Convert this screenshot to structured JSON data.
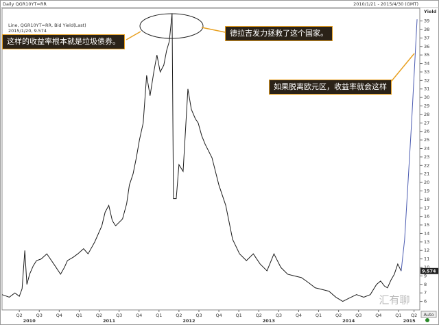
{
  "chart_data": {
    "type": "line",
    "title": "Daily QGR10YT=RR",
    "date_range": "2010/1/21 - 2015/4/30 (GMT)",
    "y_label": "Yield",
    "legend_text": [
      "Line, QGR10YT=RR, Bid Yield(Last)",
      "2015/1/20, 9.574"
    ],
    "last_value": 9.574,
    "series": [
      {
        "name": "Line, QGR10YT=RR, Bid Yield(Last)",
        "color": "#1a1a1a",
        "x": [
          2010.159,
          2010.25,
          2010.32,
          2010.375,
          2010.41,
          2010.444,
          2010.47,
          2010.504,
          2010.55,
          2010.591,
          2010.65,
          2010.72,
          2010.8,
          2010.892,
          2010.94,
          2010.978,
          2011.05,
          2011.108,
          2011.18,
          2011.237,
          2011.32,
          2011.409,
          2011.45,
          2011.496,
          2011.54,
          2011.582,
          2011.668,
          2011.72,
          2011.754,
          2011.8,
          2011.841,
          2011.88,
          2011.927,
          2011.95,
          2011.97,
          2012.013,
          2012.06,
          2012.099,
          2012.14,
          2012.185,
          2012.22,
          2012.254,
          2012.289,
          2012.306,
          2012.341,
          2012.375,
          2012.427,
          2012.487,
          2012.53,
          2012.58,
          2012.616,
          2012.66,
          2012.703,
          2012.789,
          2012.875,
          2012.961,
          2013.047,
          2013.134,
          2013.22,
          2013.306,
          2013.392,
          2013.478,
          2013.565,
          2013.651,
          2013.737,
          2013.82,
          2013.909,
          2014.0,
          2014.082,
          2014.17,
          2014.254,
          2014.34,
          2014.427,
          2014.51,
          2014.599,
          2014.69,
          2014.772,
          2014.85,
          2014.901,
          2014.95,
          2014.987,
          2015.03,
          2015.073,
          2015.116,
          2015.159
        ],
        "values": [
          6.8,
          6.5,
          7.0,
          6.6,
          7.5,
          12.0,
          8.0,
          9.2,
          10.2,
          10.8,
          11.0,
          11.6,
          10.5,
          9.2,
          10.0,
          10.8,
          11.2,
          11.6,
          12.2,
          11.6,
          13.0,
          14.9,
          16.5,
          17.3,
          15.5,
          14.9,
          15.7,
          17.5,
          19.7,
          21.0,
          22.9,
          25.0,
          27.0,
          30.0,
          32.6,
          30.2,
          33.0,
          35.0,
          33.0,
          33.8,
          35.5,
          36.6,
          39.9,
          18.1,
          18.1,
          22.1,
          21.3,
          31.0,
          28.6,
          27.5,
          27.0,
          25.5,
          24.5,
          22.9,
          19.7,
          17.3,
          13.3,
          11.6,
          10.8,
          11.6,
          10.4,
          9.6,
          11.6,
          10.0,
          9.2,
          9.0,
          8.8,
          8.2,
          7.6,
          7.4,
          7.2,
          6.5,
          6.0,
          6.4,
          6.8,
          6.5,
          6.8,
          8.0,
          8.4,
          7.8,
          7.6,
          8.5,
          9.2,
          10.4,
          9.574
        ]
      },
      {
        "color": "#4a5ab0",
        "x": [
          2015.159,
          2015.202,
          2015.289,
          2015.358
        ],
        "values": [
          9.574,
          13.3,
          27.0,
          39.2
        ]
      }
    ],
    "xlim": [
      2010.159,
      2015.392
    ],
    "ylim": [
      5.0,
      40.5
    ],
    "yticks": [
      6,
      7,
      8,
      9,
      10,
      11,
      12,
      13,
      14,
      15,
      16,
      17,
      18,
      19,
      20,
      21,
      22,
      23,
      24,
      25,
      26,
      27,
      28,
      29,
      30,
      31,
      32,
      33,
      34,
      35,
      36,
      37,
      38,
      39
    ],
    "xticks": [
      {
        "value": 2010.375,
        "label": "Q2"
      },
      {
        "value": 2010.625,
        "label": "Q3"
      },
      {
        "value": 2010.875,
        "label": "Q4"
      },
      {
        "value": 2011.125,
        "label": "Q1"
      },
      {
        "value": 2011.375,
        "label": "Q2"
      },
      {
        "value": 2011.625,
        "label": "Q3"
      },
      {
        "value": 2011.875,
        "label": "Q4"
      },
      {
        "value": 2012.125,
        "label": "Q1"
      },
      {
        "value": 2012.375,
        "label": "Q2"
      },
      {
        "value": 2012.625,
        "label": "Q3"
      },
      {
        "value": 2012.875,
        "label": "Q4"
      },
      {
        "value": 2013.125,
        "label": "Q1"
      },
      {
        "value": 2013.375,
        "label": "Q2"
      },
      {
        "value": 2013.625,
        "label": "Q3"
      },
      {
        "value": 2013.875,
        "label": "Q4"
      },
      {
        "value": 2014.125,
        "label": "Q1"
      },
      {
        "value": 2014.375,
        "label": "Q2"
      },
      {
        "value": 2014.625,
        "label": "Q3"
      },
      {
        "value": 2014.875,
        "label": "Q4"
      },
      {
        "value": 2015.125,
        "label": "Q1"
      },
      {
        "value": 2015.32,
        "label": "Q2"
      }
    ],
    "year_ticks": [
      {
        "value": 2010.5,
        "label": "2010"
      },
      {
        "value": 2011.5,
        "label": "2011"
      },
      {
        "value": 2012.5,
        "label": "2012"
      },
      {
        "value": 2013.5,
        "label": "2013"
      },
      {
        "value": 2014.5,
        "label": "2014"
      },
      {
        "value": 2015.26,
        "label": "2015"
      }
    ],
    "grid": false,
    "annotations": [
      "这样的收益率根本就是垃圾债券。",
      "德拉吉发力拯救了这个国家。",
      "如果脱离欧元区，收益率就会这样"
    ]
  },
  "controls": {
    "auto": "Auto"
  },
  "watermark": "汇有聊"
}
